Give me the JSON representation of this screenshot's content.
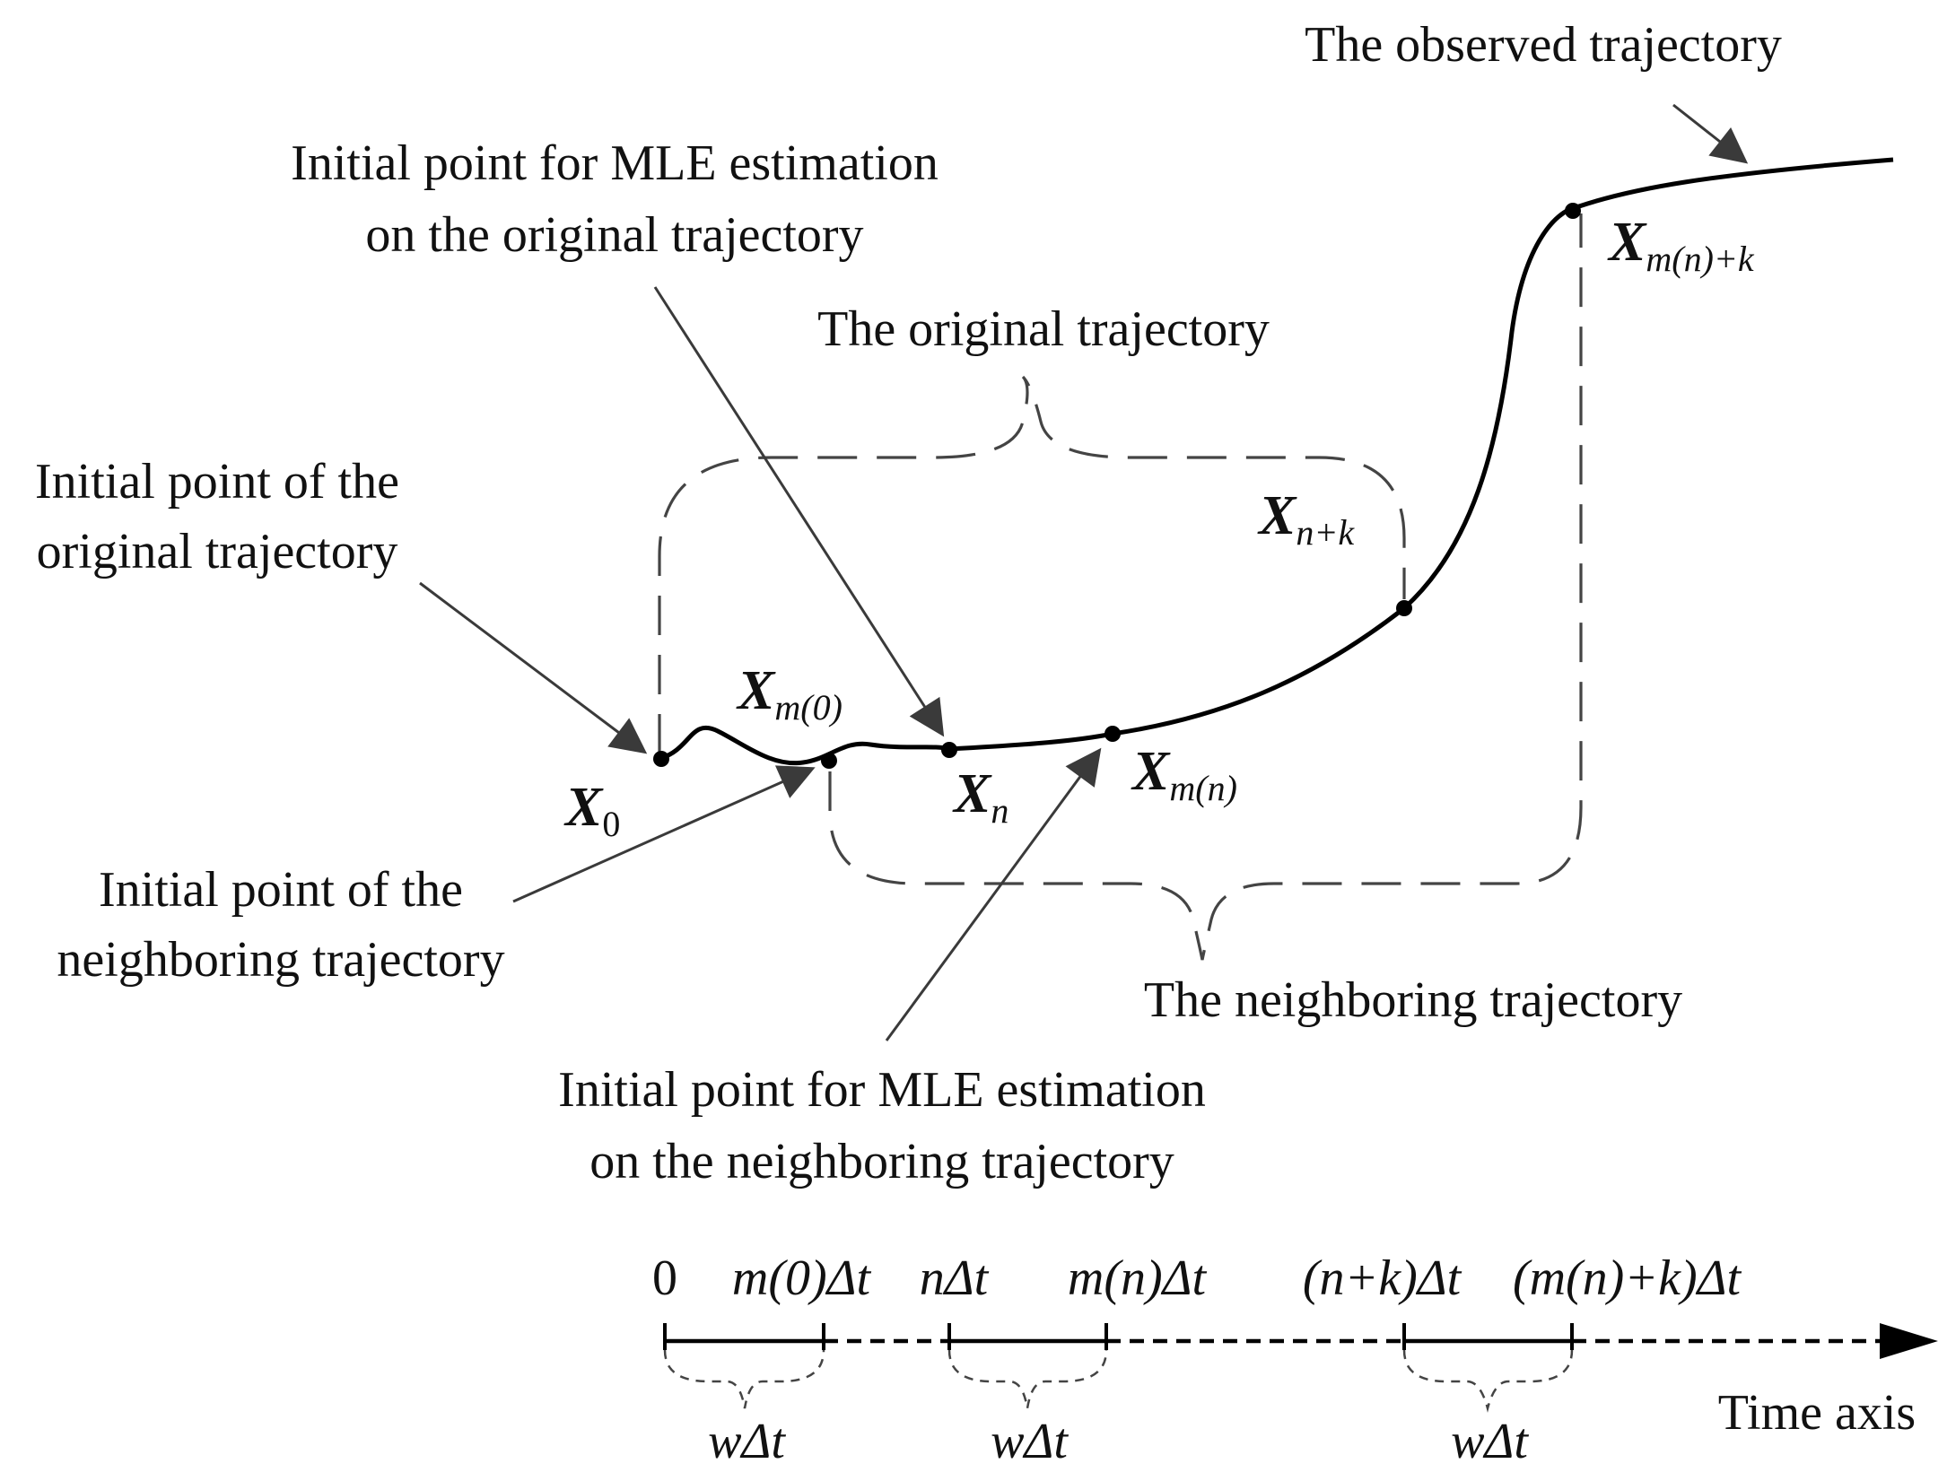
{
  "labels": {
    "observed_trajectory": "The observed trajectory",
    "mle_original_line1": "Initial point for MLE estimation",
    "mle_original_line2": "on the original trajectory",
    "original_trajectory": "The original trajectory",
    "initial_original_line1": "Initial point of the",
    "initial_original_line2": "original trajectory",
    "initial_neighbor_line1": "Initial point of the",
    "initial_neighbor_line2": "neighboring trajectory",
    "neighboring_trajectory": "The neighboring trajectory",
    "mle_neighbor_line1": "Initial point for MLE estimation",
    "mle_neighbor_line2": "on the neighboring trajectory",
    "time_axis": "Time axis"
  },
  "points": {
    "x0": {
      "symbol": "X",
      "sub": "0"
    },
    "xm0": {
      "symbol": "X",
      "sub": "m(0)"
    },
    "xn": {
      "symbol": "X",
      "sub": "n"
    },
    "xmn": {
      "symbol": "X",
      "sub": "m(n)"
    },
    "xnk": {
      "symbol": "X",
      "sub": "n+k"
    },
    "xmnk": {
      "symbol": "X",
      "sub": "m(n)+k"
    }
  },
  "axis_ticks": {
    "t0": "0",
    "tm0": "m(0)Δt",
    "tn": "nΔt",
    "tmn": "m(n)Δt",
    "tnk": "(n+k)Δt",
    "tmnk": "(m(n)+k)Δt"
  },
  "window_label": "wΔt"
}
